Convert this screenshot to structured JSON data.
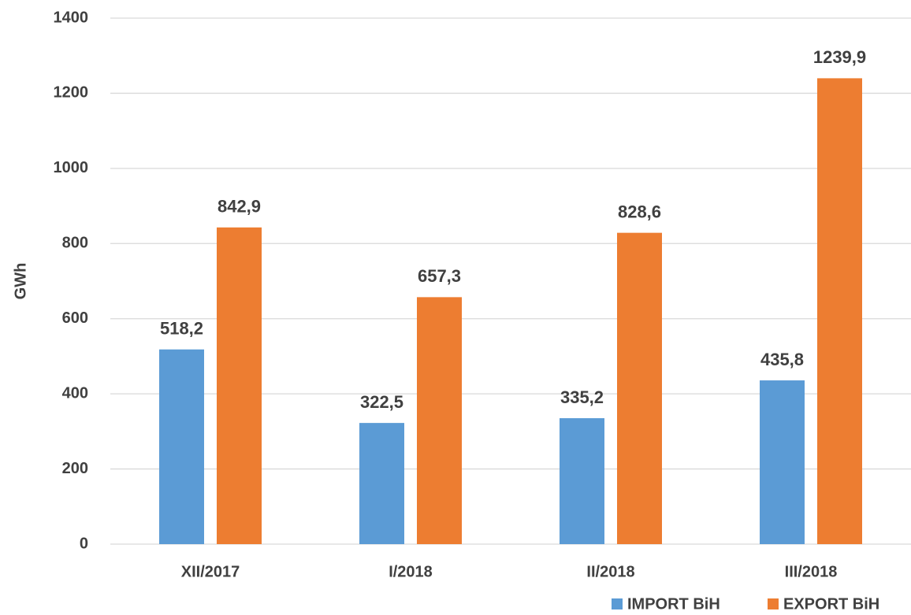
{
  "chart_data": {
    "type": "bar",
    "y_label": "GWh",
    "categories": [
      "XII/2017",
      "I/2018",
      "II/2018",
      "III/2018"
    ],
    "series": [
      {
        "name": "IMPORT BiH",
        "color": "#5b9bd5",
        "values": [
          518.2,
          322.5,
          335.2,
          435.8
        ],
        "value_labels": [
          "518,2",
          "322,5",
          "335,2",
          "435,8"
        ]
      },
      {
        "name": "EXPORT BiH",
        "color": "#ed7d31",
        "values": [
          842.9,
          657.3,
          828.6,
          1239.9
        ],
        "value_labels": [
          "842,9",
          "657,3",
          "828,6",
          "1239,9"
        ]
      }
    ],
    "ylim": [
      0,
      1400
    ],
    "yticks": [
      0,
      200,
      400,
      600,
      800,
      1000,
      1200,
      1400
    ],
    "grid": true,
    "legend": "bottom-right"
  }
}
